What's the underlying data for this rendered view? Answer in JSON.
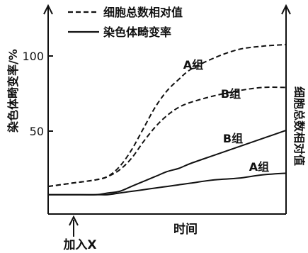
{
  "chart_data": {
    "type": "line",
    "legend": {
      "placement": "top-center",
      "entries": [
        {
          "label": "细胞总数相对值",
          "style": "dashed"
        },
        {
          "label": "染色体畸变率",
          "style": "solid"
        }
      ]
    },
    "left_axis": {
      "label": "染色体畸变率/%",
      "ticks": [
        50,
        100
      ],
      "range": [
        0,
        125
      ]
    },
    "right_axis": {
      "label": "细胞总数相对值"
    },
    "x_axis": {
      "label": "时间",
      "range": [
        0,
        100
      ],
      "annotation": {
        "label": "加入X",
        "x": 10
      }
    },
    "grid": false,
    "series": [
      {
        "name": "A组",
        "quantity": "细胞总数相对值",
        "style": "dashed",
        "x": [
          0,
          10,
          20,
          25,
          30,
          35,
          40,
          45,
          50,
          55,
          60,
          70,
          80,
          90,
          100
        ],
        "y": [
          12,
          14,
          16,
          18,
          24,
          34,
          47,
          60,
          70,
          77,
          83,
          90,
          95,
          97,
          98
        ]
      },
      {
        "name": "B组",
        "quantity": "细胞总数相对值",
        "style": "dashed",
        "x": [
          0,
          10,
          20,
          25,
          30,
          35,
          40,
          45,
          50,
          55,
          60,
          70,
          80,
          90,
          100
        ],
        "y": [
          12,
          14,
          16,
          18,
          22,
          29,
          39,
          48,
          55,
          60,
          63,
          67,
          70,
          72,
          72
        ]
      },
      {
        "name": "B组",
        "quantity": "染色体畸变率",
        "style": "solid",
        "x": [
          0,
          10,
          20,
          25,
          30,
          35,
          40,
          45,
          50,
          55,
          60,
          70,
          80,
          90,
          100
        ],
        "y": [
          7,
          7,
          7,
          8,
          9,
          12,
          15,
          18,
          21,
          23,
          26,
          31,
          36,
          41,
          46
        ]
      },
      {
        "name": "A组",
        "quantity": "染色体畸变率",
        "style": "solid",
        "x": [
          0,
          10,
          20,
          25,
          30,
          35,
          40,
          45,
          50,
          55,
          60,
          70,
          80,
          90,
          100
        ],
        "y": [
          7,
          7,
          7,
          7,
          8,
          9,
          10,
          11,
          12,
          13,
          14,
          16,
          17,
          19,
          20
        ]
      }
    ]
  }
}
